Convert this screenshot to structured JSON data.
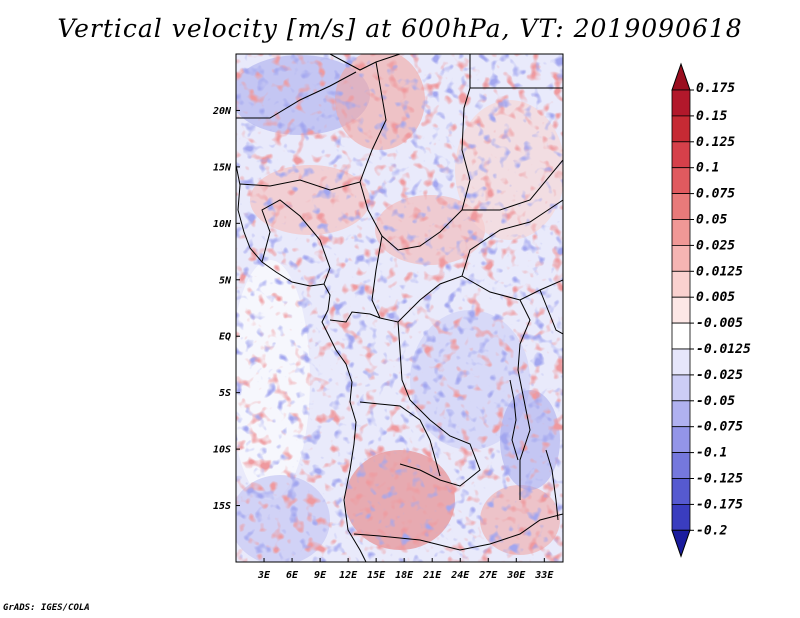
{
  "title": "Vertical velocity [m/s] at 600hPa, VT: 2019090618",
  "credit": "GrADS: IGES/COLA",
  "map": {
    "lon_range": [
      0,
      35
    ],
    "lat_range": [
      -20,
      25
    ],
    "x_ticks": [
      {
        "value": 3,
        "label": "3E"
      },
      {
        "value": 6,
        "label": "6E"
      },
      {
        "value": 9,
        "label": "9E"
      },
      {
        "value": 12,
        "label": "12E"
      },
      {
        "value": 15,
        "label": "15E"
      },
      {
        "value": 18,
        "label": "18E"
      },
      {
        "value": 21,
        "label": "21E"
      },
      {
        "value": 24,
        "label": "24E"
      },
      {
        "value": 27,
        "label": "27E"
      },
      {
        "value": 30,
        "label": "30E"
      },
      {
        "value": 33,
        "label": "33E"
      }
    ],
    "y_ticks": [
      {
        "value": 20,
        "label": "20N"
      },
      {
        "value": 15,
        "label": "15N"
      },
      {
        "value": 10,
        "label": "10N"
      },
      {
        "value": 5,
        "label": "5N"
      },
      {
        "value": 0,
        "label": "EQ"
      },
      {
        "value": -5,
        "label": "5S"
      },
      {
        "value": -10,
        "label": "10S"
      },
      {
        "value": -15,
        "label": "15S"
      }
    ]
  },
  "colorbar": {
    "levels": [
      {
        "label": "0.175",
        "color": "#b2182b"
      },
      {
        "label": "0.15",
        "color": "#c62a34"
      },
      {
        "label": "0.125",
        "color": "#d6404a"
      },
      {
        "label": "0.1",
        "color": "#e05a5f"
      },
      {
        "label": "0.075",
        "color": "#e87a7a"
      },
      {
        "label": "0.05",
        "color": "#f09896"
      },
      {
        "label": "0.025",
        "color": "#f6b5b3"
      },
      {
        "label": "0.0125",
        "color": "#fad1cf"
      },
      {
        "label": "0.005",
        "color": "#fde7e6"
      },
      {
        "label": "-0.005",
        "color": "#ffffff"
      },
      {
        "label": "-0.0125",
        "color": "#e6e6fb"
      },
      {
        "label": "-0.025",
        "color": "#cccdf6"
      },
      {
        "label": "-0.05",
        "color": "#b0b1f0"
      },
      {
        "label": "-0.075",
        "color": "#9395e8"
      },
      {
        "label": "-0.1",
        "color": "#7578dd"
      },
      {
        "label": "-0.125",
        "color": "#565ad0"
      },
      {
        "label": "-0.175",
        "color": "#3a3dbf"
      },
      {
        "label": "-0.2",
        "color": "#2226ad"
      }
    ],
    "top_triangle_color": "#9a0e1f",
    "bottom_triangle_color": "#1a1c9e"
  }
}
